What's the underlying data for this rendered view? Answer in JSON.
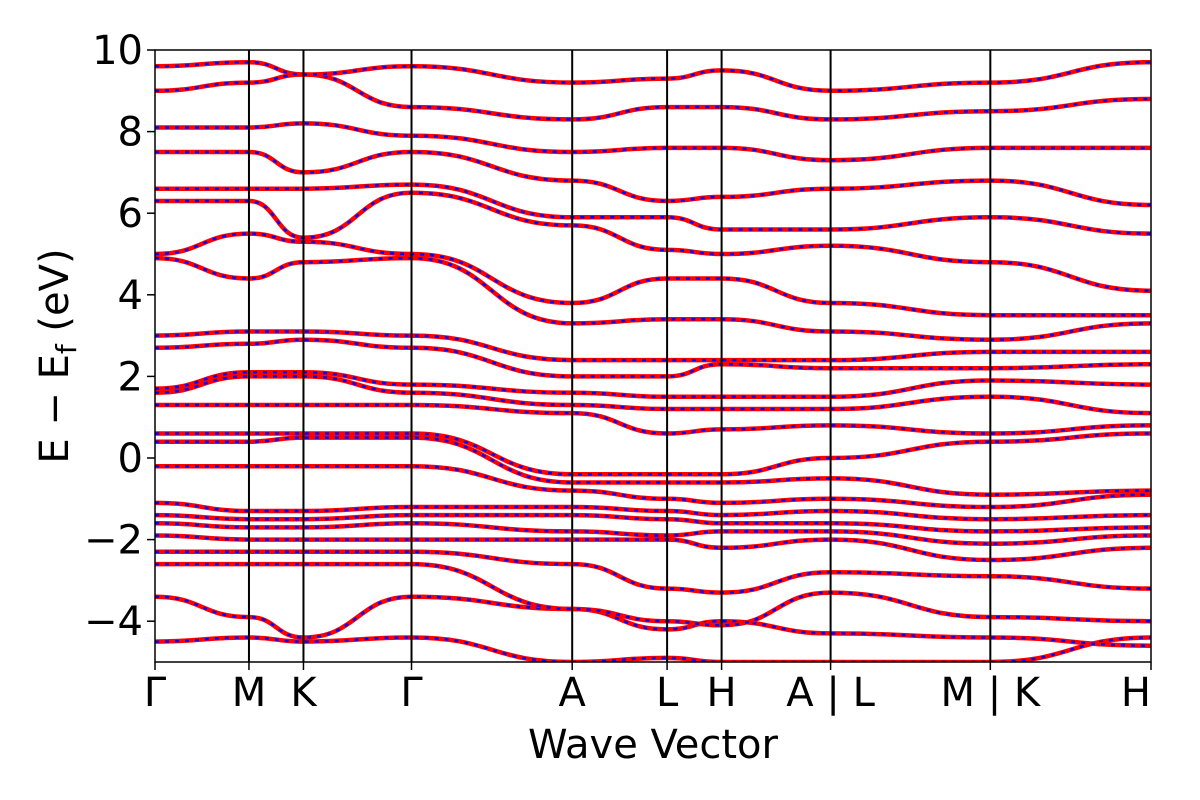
{
  "chart_data": {
    "type": "line",
    "title": "",
    "xlabel": "Wave Vector",
    "ylabel_main": "E − E",
    "ylabel_sub": "f",
    "ylabel_unit": " (eV)",
    "ylim": [
      -5,
      10
    ],
    "yticks": [
      10,
      8,
      6,
      4,
      2,
      0,
      -2,
      -4
    ],
    "ytick_labels": [
      "10",
      "8",
      "6",
      "4",
      "2",
      "0",
      "−2",
      "−4"
    ],
    "xlim": [
      0,
      10.6
    ],
    "kpoints": [
      {
        "x": 0.0,
        "label": "Γ"
      },
      {
        "x": 1.0,
        "label": "M"
      },
      {
        "x": 1.58,
        "label": "K"
      },
      {
        "x": 2.73,
        "label": "Γ"
      },
      {
        "x": 4.44,
        "label": "A"
      },
      {
        "x": 5.45,
        "label": "L"
      },
      {
        "x": 6.03,
        "label": "H"
      },
      {
        "x": 7.19,
        "label": "A | L"
      },
      {
        "x": 8.89,
        "label": "M | K"
      },
      {
        "x": 10.6,
        "label": "H"
      }
    ],
    "series_colors": {
      "solid": "#ff0000",
      "dashed": "#0000ff"
    },
    "band_anchors": [
      [
        -4.5,
        -4.4,
        -4.5,
        -4.4,
        -5.0,
        -4.9,
        -5.0,
        -5.0,
        -5.0,
        -4.4
      ],
      [
        -3.4,
        -3.9,
        -4.4,
        -3.4,
        -3.7,
        -4.2,
        -4.0,
        -4.3,
        -4.4,
        -4.6
      ],
      [
        -2.6,
        -2.6,
        -2.6,
        -2.6,
        -3.7,
        -4.0,
        -4.1,
        -3.3,
        -3.9,
        -4.0
      ],
      [
        -2.3,
        -2.3,
        -2.3,
        -2.3,
        -2.6,
        -3.2,
        -3.3,
        -2.8,
        -2.9,
        -3.2
      ],
      [
        -1.9,
        -2.0,
        -2.0,
        -2.0,
        -2.0,
        -2.0,
        -2.2,
        -2.0,
        -2.5,
        -2.2
      ],
      [
        -1.6,
        -1.7,
        -1.7,
        -1.6,
        -1.8,
        -1.9,
        -1.8,
        -1.8,
        -2.1,
        -1.9
      ],
      [
        -1.4,
        -1.5,
        -1.5,
        -1.4,
        -1.4,
        -1.5,
        -1.6,
        -1.6,
        -1.8,
        -1.7
      ],
      [
        -1.1,
        -1.3,
        -1.3,
        -1.2,
        -1.2,
        -1.3,
        -1.4,
        -1.3,
        -1.5,
        -1.4
      ],
      [
        -0.2,
        -0.2,
        -0.2,
        -0.2,
        -0.8,
        -1.0,
        -1.1,
        -1.0,
        -1.2,
        -0.9
      ],
      [
        0.4,
        0.4,
        0.5,
        0.5,
        -0.6,
        -0.6,
        -0.6,
        -0.5,
        -0.9,
        -0.8
      ],
      [
        0.6,
        0.6,
        0.6,
        0.6,
        -0.4,
        -0.4,
        -0.4,
        0.0,
        0.4,
        0.6
      ],
      [
        1.3,
        1.3,
        1.3,
        1.3,
        1.1,
        0.6,
        0.7,
        0.8,
        0.6,
        0.8
      ],
      [
        1.6,
        2.0,
        2.0,
        1.6,
        1.3,
        1.2,
        1.2,
        1.2,
        1.5,
        1.1
      ],
      [
        1.7,
        2.1,
        2.1,
        1.8,
        1.6,
        1.5,
        1.5,
        1.5,
        1.9,
        1.8
      ],
      [
        2.7,
        2.8,
        2.9,
        2.7,
        2.0,
        2.0,
        2.3,
        2.2,
        2.2,
        2.3
      ],
      [
        3.0,
        3.1,
        3.1,
        3.0,
        2.4,
        2.4,
        2.4,
        2.4,
        2.6,
        2.6
      ],
      [
        4.9,
        4.4,
        4.8,
        4.9,
        3.3,
        3.4,
        3.4,
        3.1,
        2.9,
        3.3
      ],
      [
        5.0,
        5.5,
        5.3,
        5.0,
        3.8,
        4.4,
        4.4,
        3.8,
        3.5,
        3.5
      ],
      [
        6.3,
        6.3,
        5.4,
        6.5,
        5.7,
        5.1,
        5.0,
        5.2,
        4.8,
        4.1
      ],
      [
        6.6,
        6.6,
        6.6,
        6.7,
        5.9,
        5.9,
        5.6,
        5.6,
        5.9,
        5.5
      ],
      [
        7.5,
        7.5,
        7.0,
        7.5,
        6.8,
        6.3,
        6.4,
        6.6,
        6.8,
        6.2
      ],
      [
        8.1,
        8.1,
        8.2,
        7.9,
        7.5,
        7.6,
        7.6,
        7.3,
        7.6,
        7.6
      ],
      [
        9.0,
        9.2,
        9.4,
        8.6,
        8.3,
        8.6,
        8.6,
        8.3,
        8.5,
        8.8
      ],
      [
        9.6,
        9.7,
        9.4,
        9.6,
        9.2,
        9.3,
        9.5,
        9.0,
        9.2,
        9.7
      ]
    ]
  }
}
